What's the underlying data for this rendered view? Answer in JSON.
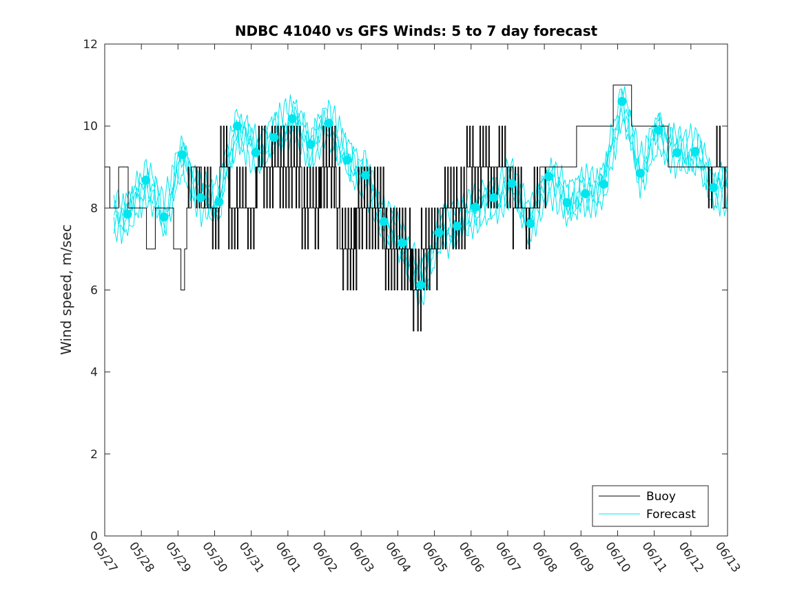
{
  "chart_data": {
    "type": "line",
    "title": "NDBC 41040 vs GFS Winds: 5 to 7 day forecast",
    "xlabel": "",
    "ylabel": "Wind speed, m/sec",
    "xlim": [
      "05/27",
      "06/13"
    ],
    "ylim": [
      0,
      12
    ],
    "yticks": [
      0,
      2,
      4,
      6,
      8,
      10,
      12
    ],
    "xticks": [
      "05/27",
      "05/28",
      "05/29",
      "05/30",
      "05/31",
      "06/01",
      "06/02",
      "06/03",
      "06/04",
      "06/05",
      "06/06",
      "06/07",
      "06/08",
      "06/09",
      "06/10",
      "06/11",
      "06/12",
      "06/13"
    ],
    "grid": false,
    "legend": {
      "position": "bottom-right",
      "entries": [
        "Buoy",
        "Forecast"
      ]
    },
    "colors": {
      "buoy": "#000000",
      "forecast": "#00e5ee",
      "axis": "#262626"
    },
    "series": [
      {
        "name": "Buoy",
        "x_unit": "days since 05/27 00:00",
        "x": [
          0.0,
          0.25,
          0.5,
          0.75,
          1.0,
          1.25,
          1.5,
          1.75,
          2.0,
          2.15,
          2.25,
          2.5,
          2.75,
          3.0,
          3.25,
          3.5,
          3.75,
          4.0,
          4.25,
          4.5,
          4.75,
          5.0,
          5.25,
          5.5,
          5.75,
          6.0,
          6.25,
          6.5,
          6.75,
          7.0,
          7.25,
          7.5,
          7.75,
          8.0,
          8.25,
          8.5,
          8.75,
          9.0,
          9.25,
          9.5,
          9.75,
          10.0,
          10.25,
          10.5,
          10.75,
          11.0,
          11.25,
          11.5,
          11.75,
          12.0,
          12.25,
          12.5,
          12.75,
          13.0,
          13.25,
          13.5,
          13.75,
          14.0,
          14.25,
          14.5,
          14.75,
          15.0,
          15.25,
          15.5,
          15.75,
          16.0,
          16.25,
          16.5
        ],
        "values": [
          9,
          8,
          9,
          8,
          8,
          7,
          8,
          8,
          7,
          6,
          8,
          9,
          8,
          8,
          9,
          8,
          8,
          8,
          9,
          9,
          9,
          9,
          9,
          8,
          8,
          9,
          9,
          7,
          7,
          8,
          8,
          8,
          7,
          7,
          7,
          6,
          7,
          7,
          8,
          8,
          8,
          9,
          9,
          9,
          9,
          9,
          8,
          8,
          8,
          9,
          9,
          9,
          9,
          10,
          10,
          10,
          10,
          11,
          11,
          10,
          10,
          10,
          10,
          9,
          9,
          9,
          9,
          9
        ]
      },
      {
        "name": "Forecast",
        "x_unit": "days since 05/27 00:00",
        "x": [
          0.62,
          1.12,
          1.62,
          2.12,
          2.62,
          3.12,
          3.62,
          4.12,
          4.62,
          5.12,
          5.62,
          6.12,
          6.62,
          7.12,
          7.62,
          8.12,
          8.62,
          9.12,
          9.62,
          10.12,
          10.62,
          11.12,
          11.62,
          12.12,
          12.62,
          13.12,
          13.62,
          14.12,
          14.62,
          15.12,
          15.62,
          16.12,
          16.62
        ],
        "values": [
          7.85,
          8.68,
          7.78,
          9.3,
          8.25,
          8.15,
          10.0,
          9.35,
          9.72,
          10.18,
          9.55,
          10.07,
          9.17,
          8.8,
          7.67,
          7.15,
          6.12,
          7.4,
          7.56,
          8.02,
          8.25,
          8.6,
          7.62,
          8.77,
          8.13,
          8.35,
          8.58,
          10.6,
          8.85,
          9.9,
          9.35,
          9.38,
          8.5
        ]
      }
    ]
  }
}
